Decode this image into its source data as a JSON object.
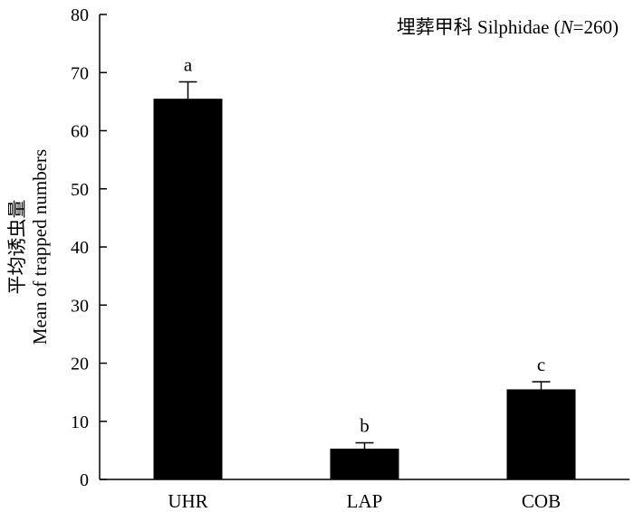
{
  "chart_data": {
    "type": "bar",
    "title": "埋葬甲科 Silphidae",
    "title_n_prefix": "(",
    "title_n_symbol": "N",
    "title_n_value": "=260)",
    "ylabel_cn": "平均诱虫量",
    "ylabel_en": "Mean of trapped numbers",
    "xlabel": "",
    "ylim": [
      0,
      80
    ],
    "yticks": [
      0,
      10,
      20,
      30,
      40,
      50,
      60,
      70,
      80
    ],
    "categories": [
      "UHR",
      "LAP",
      "COB"
    ],
    "values": [
      65.5,
      5.3,
      15.5
    ],
    "error": [
      2.9,
      1.0,
      1.3
    ],
    "significance": [
      "a",
      "b",
      "c"
    ],
    "bar_color": "#000000",
    "grid": false
  }
}
